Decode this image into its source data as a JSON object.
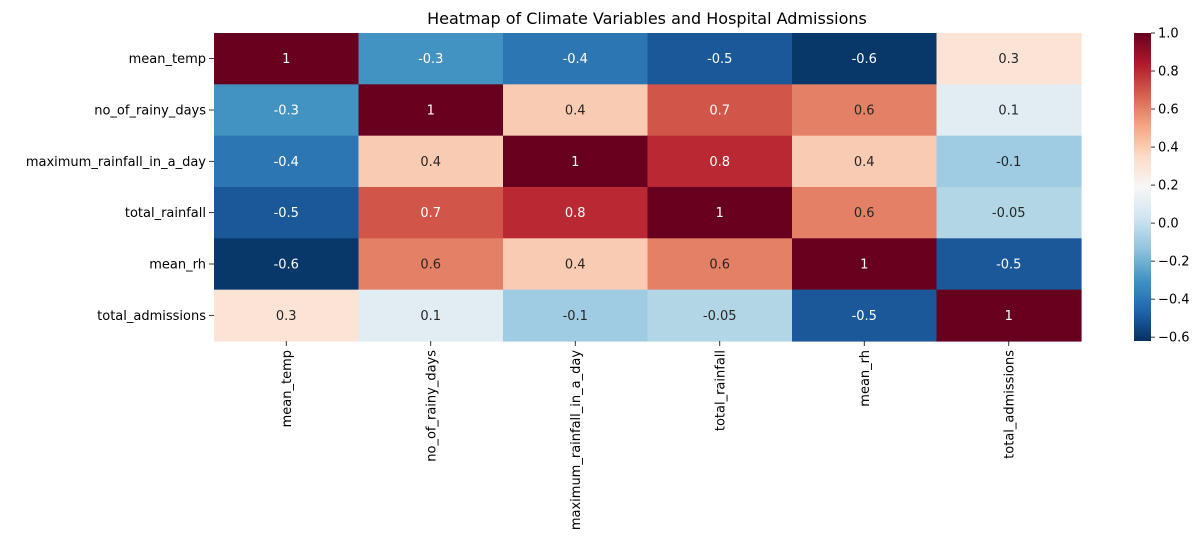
{
  "chart_data": {
    "type": "heatmap",
    "title": "Heatmap of Climate Variables and Hospital Admissions",
    "xlabel": "",
    "ylabel": "",
    "rows": [
      "mean_temp",
      "no_of_rainy_days",
      "maximum_rainfall_in_a_day",
      "total_rainfall",
      "mean_rh",
      "total_admissions"
    ],
    "columns": [
      "mean_temp",
      "no_of_rainy_days",
      "maximum_rainfall_in_a_day",
      "total_rainfall",
      "mean_rh",
      "total_admissions"
    ],
    "values": [
      [
        1,
        -0.3,
        -0.4,
        -0.5,
        -0.6,
        0.3
      ],
      [
        -0.3,
        1,
        0.4,
        0.7,
        0.6,
        0.1
      ],
      [
        -0.4,
        0.4,
        1,
        0.8,
        0.4,
        -0.1
      ],
      [
        -0.5,
        0.7,
        0.8,
        1,
        0.6,
        -0.05
      ],
      [
        -0.6,
        0.6,
        0.4,
        0.6,
        1,
        -0.5
      ],
      [
        0.3,
        0.1,
        -0.1,
        -0.05,
        -0.5,
        1
      ]
    ],
    "colorscale": "RdBu_r",
    "vmin": -0.62,
    "vmax": 1.0,
    "colorbar_ticks": [
      1.0,
      0.8,
      0.6,
      0.4,
      0.2,
      0.0,
      -0.2,
      -0.4,
      -0.6
    ],
    "colorbar_tick_labels": [
      "1.0",
      "0.8",
      "0.6",
      "0.4",
      "0.2",
      "0.0",
      "−0.2",
      "−0.4",
      "−0.6"
    ],
    "grid": false
  }
}
